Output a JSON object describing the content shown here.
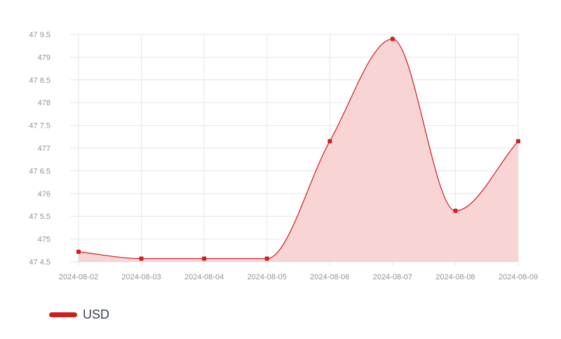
{
  "chart_data": {
    "type": "area",
    "x": [
      "2024-08-02",
      "2024-08-03",
      "2024-08-04",
      "2024-08-05",
      "2024-08-06",
      "2024-08-07",
      "2024-08-08",
      "2024-08-09"
    ],
    "series": [
      {
        "name": "USD",
        "values": [
          474.72,
          474.57,
          474.57,
          474.57,
          477.15,
          479.4,
          475.62,
          477.15
        ]
      }
    ],
    "ylim": [
      474.5,
      479.5
    ],
    "yticks": [
      474.5,
      475,
      475.5,
      476,
      476.5,
      477,
      477.5,
      478,
      478.5,
      479,
      479.5
    ],
    "ytick_labels": [
      "47 4.5",
      "475",
      "47 5.5",
      "476",
      "47 6.5",
      "477",
      "47 7.5",
      "478",
      "47 8.5",
      "479",
      "47 9.5"
    ],
    "grid": true,
    "legend_position": "bottom-left",
    "colors": {
      "line": "#cc1f1f",
      "fill": "#f7cfcf",
      "grid": "#e3e6ea"
    }
  },
  "legend": {
    "label": "USD",
    "color": "#cc1f1f"
  }
}
